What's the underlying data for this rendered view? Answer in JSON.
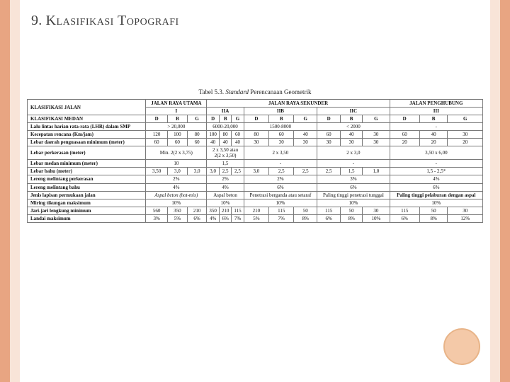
{
  "title_num": "9.",
  "title_word1": "Klasifikasi",
  "title_word2": "Topografi",
  "caption_prefix": "Tabel 5.3. ",
  "caption_italic": "Standard",
  "caption_suffix": " Perencanaan Geometrik",
  "hdr_klas_jalan": "KLASIFIKASI JALAN",
  "hdr_utama": "JALAN RAYA UTAMA",
  "hdr_sekunder": "JALAN RAYA SEKUNDER",
  "hdr_penghubung": "JALAN PENGHUBUNG",
  "hdr_I": "I",
  "hdr_IIA": "IIA",
  "hdr_IIB": "IIB",
  "hdr_IIC": "IIC",
  "hdr_III": "III",
  "hdr_klas_medan": "KLASIFIKASI MEDAN",
  "D": "D",
  "B": "B",
  "G": "G",
  "r1_label": "Lalu lintas harian rata-rata (LHR) dalam SMP",
  "r1_v1": "> 20,000",
  "r1_v2": "6000-20,000",
  "r1_v3": "1500-8000",
  "r1_v4": "< 2000",
  "r1_v5": "-",
  "r2_label": "Kecepatan rencana (Km/jam)",
  "r2": [
    "120",
    "100",
    "80",
    "100",
    "80",
    "60",
    "80",
    "60",
    "40",
    "60",
    "40",
    "30",
    "60",
    "40",
    "30"
  ],
  "r3_label": "Lebar daerah penguasaan minimum (meter)",
  "r3": [
    "60",
    "60",
    "60",
    "40",
    "40",
    "40",
    "30",
    "30",
    "30",
    "30",
    "30",
    "30",
    "20",
    "20",
    "20"
  ],
  "r4_label": "Lebar perkerasan (meter)",
  "r4_v1": "Min. 2(2 x 3,75)",
  "r4_v2": "2 x 3,50 atau\n2(2 x 3,50)",
  "r4_v3": "2 x 3,50",
  "r4_v4": "2 x 3,0",
  "r4_v5": "3,50 x 6,00",
  "r5_label": "Lebar medan minimum (meter)",
  "r5_v1": "10",
  "r5_v2": "1,5",
  "r5_dash": "-",
  "r6_label": "Lebar bahu (meter)",
  "r6": [
    "3,50",
    "3,0",
    "3,0",
    "3,0",
    "2,5",
    "2,5",
    "3,0",
    "2,5",
    "2,5",
    "2,5",
    "1,5",
    "1,0",
    "1,5 - 2,5*"
  ],
  "r7_label": "Lereng melintang perkerasan",
  "r7_v": "2%",
  "r7_v3": "3%",
  "r7_v4": "4%",
  "r8_label": "Lereng melintang bahu",
  "r8_v": "4%",
  "r8_v2": "6%",
  "r9_label": "Jenis lapisan permukaan jalan",
  "r9_v1": "Aspal beton (hot-mix)",
  "r9_v2": "Aspal beton",
  "r9_v3": "Penetrasi berganda atau setaraf",
  "r9_v4": "Paling tinggi penetrasi tunggal",
  "r9_v5": "Paling tinggi pelaburan dengan aspal",
  "r10_label": "Miring tikungan maksimum",
  "r10_v": "10%",
  "r11_label": "Jari-jari lengkung minimum",
  "r11": [
    "560",
    "350",
    "210",
    "350",
    "210",
    "115",
    "210",
    "115",
    "50",
    "115",
    "50",
    "30",
    "115",
    "50",
    "30"
  ],
  "r12_label": "Landai maksimum",
  "r12": [
    "3%",
    "5%",
    "6%",
    "4%",
    "6%",
    "7%",
    "5%",
    "7%",
    "8%",
    "6%",
    "8%",
    "10%",
    "6%",
    "8%",
    "12%"
  ]
}
